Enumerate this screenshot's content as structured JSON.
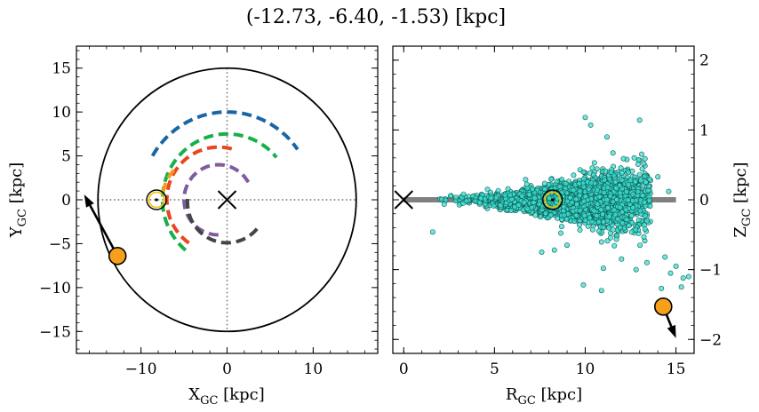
{
  "figure": {
    "title": "(-12.73, -6.40, -1.53) [kpc]"
  },
  "chart_data": [
    {
      "type": "line",
      "panel": "left",
      "xlabel": "X",
      "xlabel_sub": "GC",
      "xlabel_unit": " [kpc]",
      "ylabel": "Y",
      "ylabel_sub": "GC",
      "ylabel_unit": " [kpc]",
      "xlim": [
        -17.5,
        17.5
      ],
      "ylim": [
        -17.5,
        17.5
      ],
      "xticks": [
        -10,
        0,
        10
      ],
      "xtick_labels": [
        "−10",
        "0",
        "10"
      ],
      "yticks": [
        -15,
        -10,
        -5,
        0,
        5,
        10,
        15
      ],
      "ytick_labels": [
        "−15",
        "−10",
        "−5",
        "0",
        "5",
        "10",
        "15"
      ],
      "grid": false,
      "galactic_center": [
        0,
        0
      ],
      "boundary_circle_radius": 15,
      "crosshair_lines": {
        "x": 0,
        "y": 0,
        "extent": 15
      },
      "sun": [
        -8.2,
        0
      ],
      "arms": [
        {
          "color": "#1a66a5",
          "radius": 10.0,
          "center": [
            0,
            0
          ],
          "theta_start_deg": 150,
          "theta_end_deg": 35
        },
        {
          "color": "#16b04a",
          "radius": 7.5,
          "center": [
            0,
            0
          ],
          "theta_start_deg": 230,
          "theta_end_deg": 40
        },
        {
          "color": "#e8461e",
          "radius": 6.0,
          "center": [
            -1.0,
            0
          ],
          "theta_start_deg": 235,
          "theta_end_deg": 70
        },
        {
          "color": "#f29c1a",
          "radius": 5.0,
          "center": [
            -2.5,
            0
          ],
          "theta_start_deg": 170,
          "theta_end_deg": 135
        },
        {
          "color": "#7e5c9e",
          "radius": 4.0,
          "center": [
            -1.0,
            0
          ],
          "theta_start_deg": 270,
          "theta_end_deg": 30
        },
        {
          "color": "#444444",
          "radius": 4.6,
          "center": [
            0,
            -0.3
          ],
          "theta_start_deg": 175,
          "theta_end_deg": 325
        }
      ],
      "object": {
        "x": -12.73,
        "y": -6.4,
        "color": "#f7a11a"
      },
      "velocity_arrow": {
        "from": [
          -12.73,
          -6.4
        ],
        "to": [
          -16.6,
          0.6
        ]
      }
    },
    {
      "type": "scatter",
      "panel": "right",
      "xlabel": "R",
      "xlabel_sub": "GC",
      "xlabel_unit": " [kpc]",
      "ylabel": "Z",
      "ylabel_sub": "GC",
      "ylabel_unit": " [kpc]",
      "xlim": [
        -0.6,
        16.0
      ],
      "ylim": [
        -2.2,
        2.2
      ],
      "xticks": [
        0,
        5,
        10,
        15
      ],
      "xtick_labels": [
        "0",
        "5",
        "10",
        "15"
      ],
      "yticks": [
        -2,
        -1,
        0,
        1,
        2
      ],
      "ytick_labels": [
        "−2",
        "−1",
        "0",
        "1",
        "2"
      ],
      "grid": false,
      "disk_line": {
        "x": [
          0,
          15
        ],
        "y": 0,
        "color": "#808080"
      },
      "galactic_center": [
        0,
        0
      ],
      "sun": [
        8.2,
        0
      ],
      "object": {
        "x": 14.3,
        "y": -1.53,
        "color": "#f7a11a"
      },
      "velocity_arrow": {
        "from": [
          14.3,
          -1.53
        ],
        "to": [
          15.0,
          -1.98
        ]
      },
      "points_color": "#38e0d0",
      "point_cloud": {
        "approx_count": 2800,
        "r_range": [
          1.5,
          15.8
        ],
        "r_peak": 9.5,
        "z_spread_at_r": [
          [
            2,
            0.08
          ],
          [
            5,
            0.12
          ],
          [
            8,
            0.22
          ],
          [
            10,
            0.35
          ],
          [
            12,
            0.5
          ],
          [
            14,
            0.65
          ]
        ]
      },
      "outliers": [
        [
          1.6,
          -0.46
        ],
        [
          3.3,
          0.08
        ],
        [
          10.0,
          1.18
        ],
        [
          10.3,
          1.07
        ],
        [
          13.0,
          1.14
        ],
        [
          11.2,
          0.9
        ],
        [
          12.7,
          0.6
        ],
        [
          14.0,
          0.33
        ],
        [
          14.6,
          0.12
        ],
        [
          9.9,
          -1.22
        ],
        [
          10.9,
          -1.3
        ],
        [
          12.8,
          -1.0
        ],
        [
          13.4,
          -0.9
        ],
        [
          14.4,
          -0.82
        ],
        [
          14.7,
          -1.05
        ],
        [
          15.0,
          -0.95
        ],
        [
          15.4,
          -1.12
        ],
        [
          15.7,
          -1.1
        ],
        [
          15.3,
          -1.25
        ],
        [
          14.2,
          -1.27
        ],
        [
          7.6,
          -0.75
        ],
        [
          8.3,
          -0.72
        ],
        [
          9.0,
          -0.65
        ],
        [
          11.0,
          -0.98
        ],
        [
          12.0,
          -0.85
        ]
      ]
    }
  ]
}
